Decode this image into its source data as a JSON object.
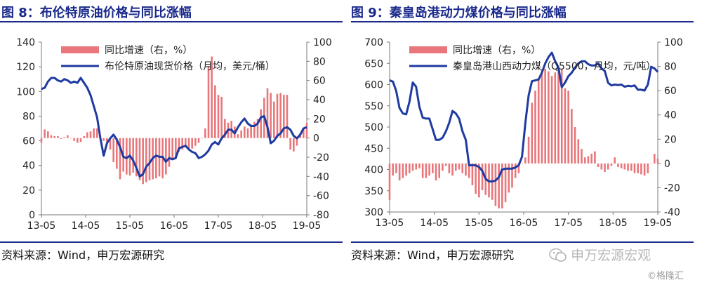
{
  "colors": {
    "title": "#1a2a8c",
    "bar": "#e8767a",
    "line": "#1f3aa0",
    "axis": "#7a7a7a"
  },
  "watermark": {
    "logo_text": "申万宏源宏观",
    "credit": "©格隆汇",
    "icon": "wechat-icon"
  },
  "chart_data": [
    {
      "type": "bar+line",
      "title": "图 8：布伦特原油价格与同比涨幅",
      "source": "资料来源：Wind，申万宏源研究",
      "x_tick_labels": [
        "13-05",
        "14-05",
        "15-05",
        "16-05",
        "17-05",
        "18-05",
        "19-05"
      ],
      "x_range": [
        "2013-05",
        "2019-05"
      ],
      "y_left": {
        "range": [
          0,
          140
        ],
        "ticks": [
          0,
          20,
          40,
          60,
          80,
          100,
          120,
          140
        ]
      },
      "y_right": {
        "range": [
          -80,
          100
        ],
        "ticks": [
          -80,
          -60,
          -40,
          -20,
          0,
          20,
          40,
          60,
          80,
          100
        ]
      },
      "series": [
        {
          "name": "同比增速（右，%）",
          "kind": "bar",
          "axis": "right",
          "values": [
            -5,
            9,
            7,
            3,
            2,
            2,
            -1,
            1,
            3,
            0,
            -3,
            -5,
            -4,
            2,
            6,
            7,
            10,
            10,
            -1,
            -3,
            -4,
            -12,
            -25,
            -32,
            -43,
            -35,
            -38,
            -39,
            -36,
            -40,
            -44,
            -48,
            -46,
            -44,
            -43,
            -42,
            -40,
            -42,
            -38,
            -30,
            -23,
            -21,
            -14,
            -12,
            -9,
            -12,
            -11,
            -8,
            -5,
            0,
            10,
            75,
            85,
            55,
            45,
            43,
            20,
            16,
            18,
            12,
            4,
            8,
            12,
            10,
            14,
            17,
            20,
            30,
            42,
            52,
            47,
            38,
            46,
            47,
            45,
            45,
            -12,
            -14,
            -8,
            5,
            10,
            16
          ]
        },
        {
          "name": "布伦特原油现货价格（月均，美元/桶）",
          "kind": "line",
          "axis": "left",
          "values": [
            102,
            103,
            108,
            111,
            111,
            109,
            108,
            110,
            109,
            107,
            108,
            107,
            111,
            107,
            103,
            97,
            88,
            79,
            62,
            48,
            58,
            62,
            65,
            61,
            55,
            47,
            46,
            48,
            44,
            38,
            31,
            33,
            39,
            42,
            46,
            48,
            47,
            47,
            43,
            46,
            45,
            46,
            54,
            55,
            56,
            53,
            51,
            50,
            46,
            47,
            49,
            52,
            57,
            59,
            57,
            62,
            65,
            69,
            69,
            66,
            71,
            75,
            78,
            74,
            72,
            72,
            74,
            79,
            80,
            71,
            58,
            60,
            64,
            66,
            70,
            71,
            69,
            64,
            62,
            65,
            70,
            71
          ]
        }
      ]
    },
    {
      "type": "bar+line",
      "title": "图 9：秦皇岛港动力煤价格与同比涨幅",
      "source": "资料来源：Wind，申万宏源研究",
      "x_tick_labels": [
        "13-05",
        "14-05",
        "15-05",
        "16-05",
        "17-05",
        "18-05",
        "19-05"
      ],
      "x_range": [
        "2013-05",
        "2019-05"
      ],
      "y_left": {
        "range": [
          300,
          700
        ],
        "ticks": [
          300,
          350,
          400,
          450,
          500,
          550,
          600,
          650,
          700
        ]
      },
      "y_right": {
        "range": [
          -40,
          100
        ],
        "ticks": [
          -40,
          -20,
          0,
          20,
          40,
          60,
          80,
          100
        ]
      },
      "series": [
        {
          "name": "同比增速（右，%）",
          "kind": "bar",
          "axis": "right",
          "values": [
            -30,
            -10,
            -8,
            -14,
            -12,
            -10,
            -8,
            -6,
            -5,
            -4,
            -12,
            -12,
            -10,
            -8,
            -14,
            -12,
            -6,
            -2,
            -8,
            -10,
            -6,
            -5,
            -8,
            -10,
            -12,
            -18,
            -25,
            -28,
            -22,
            -26,
            -28,
            -30,
            -35,
            -37,
            -37,
            -32,
            -24,
            -20,
            -12,
            -8,
            0,
            5,
            22,
            50,
            60,
            70,
            78,
            78,
            76,
            72,
            75,
            80,
            78,
            62,
            60,
            45,
            30,
            20,
            12,
            5,
            6,
            8,
            10,
            -3,
            -5,
            -7,
            -5,
            -2,
            5,
            -3,
            -4,
            -5,
            -6,
            -6,
            -8,
            -8,
            -9,
            -10,
            -8,
            0,
            8,
            4
          ]
        },
        {
          "name": "秦皇岛港山西动力煤（Q5500，月均，元/吨）",
          "kind": "line",
          "axis": "left",
          "values": [
            610,
            607,
            585,
            545,
            532,
            530,
            560,
            605,
            595,
            548,
            522,
            520,
            520,
            495,
            470,
            470,
            475,
            490,
            510,
            538,
            532,
            520,
            490,
            470,
            410,
            410,
            410,
            406,
            397,
            378,
            372,
            372,
            374,
            382,
            400,
            402,
            402,
            402,
            405,
            410,
            430,
            510,
            575,
            608,
            610,
            612,
            628,
            650,
            665,
            675,
            655,
            640,
            594,
            605,
            620,
            628,
            640,
            650,
            655,
            655,
            648,
            645,
            645,
            650,
            638,
            632,
            604,
            598,
            600,
            599,
            600,
            595,
            597,
            596,
            598,
            588,
            588,
            586,
            600,
            642,
            638,
            630
          ]
        }
      ]
    }
  ]
}
